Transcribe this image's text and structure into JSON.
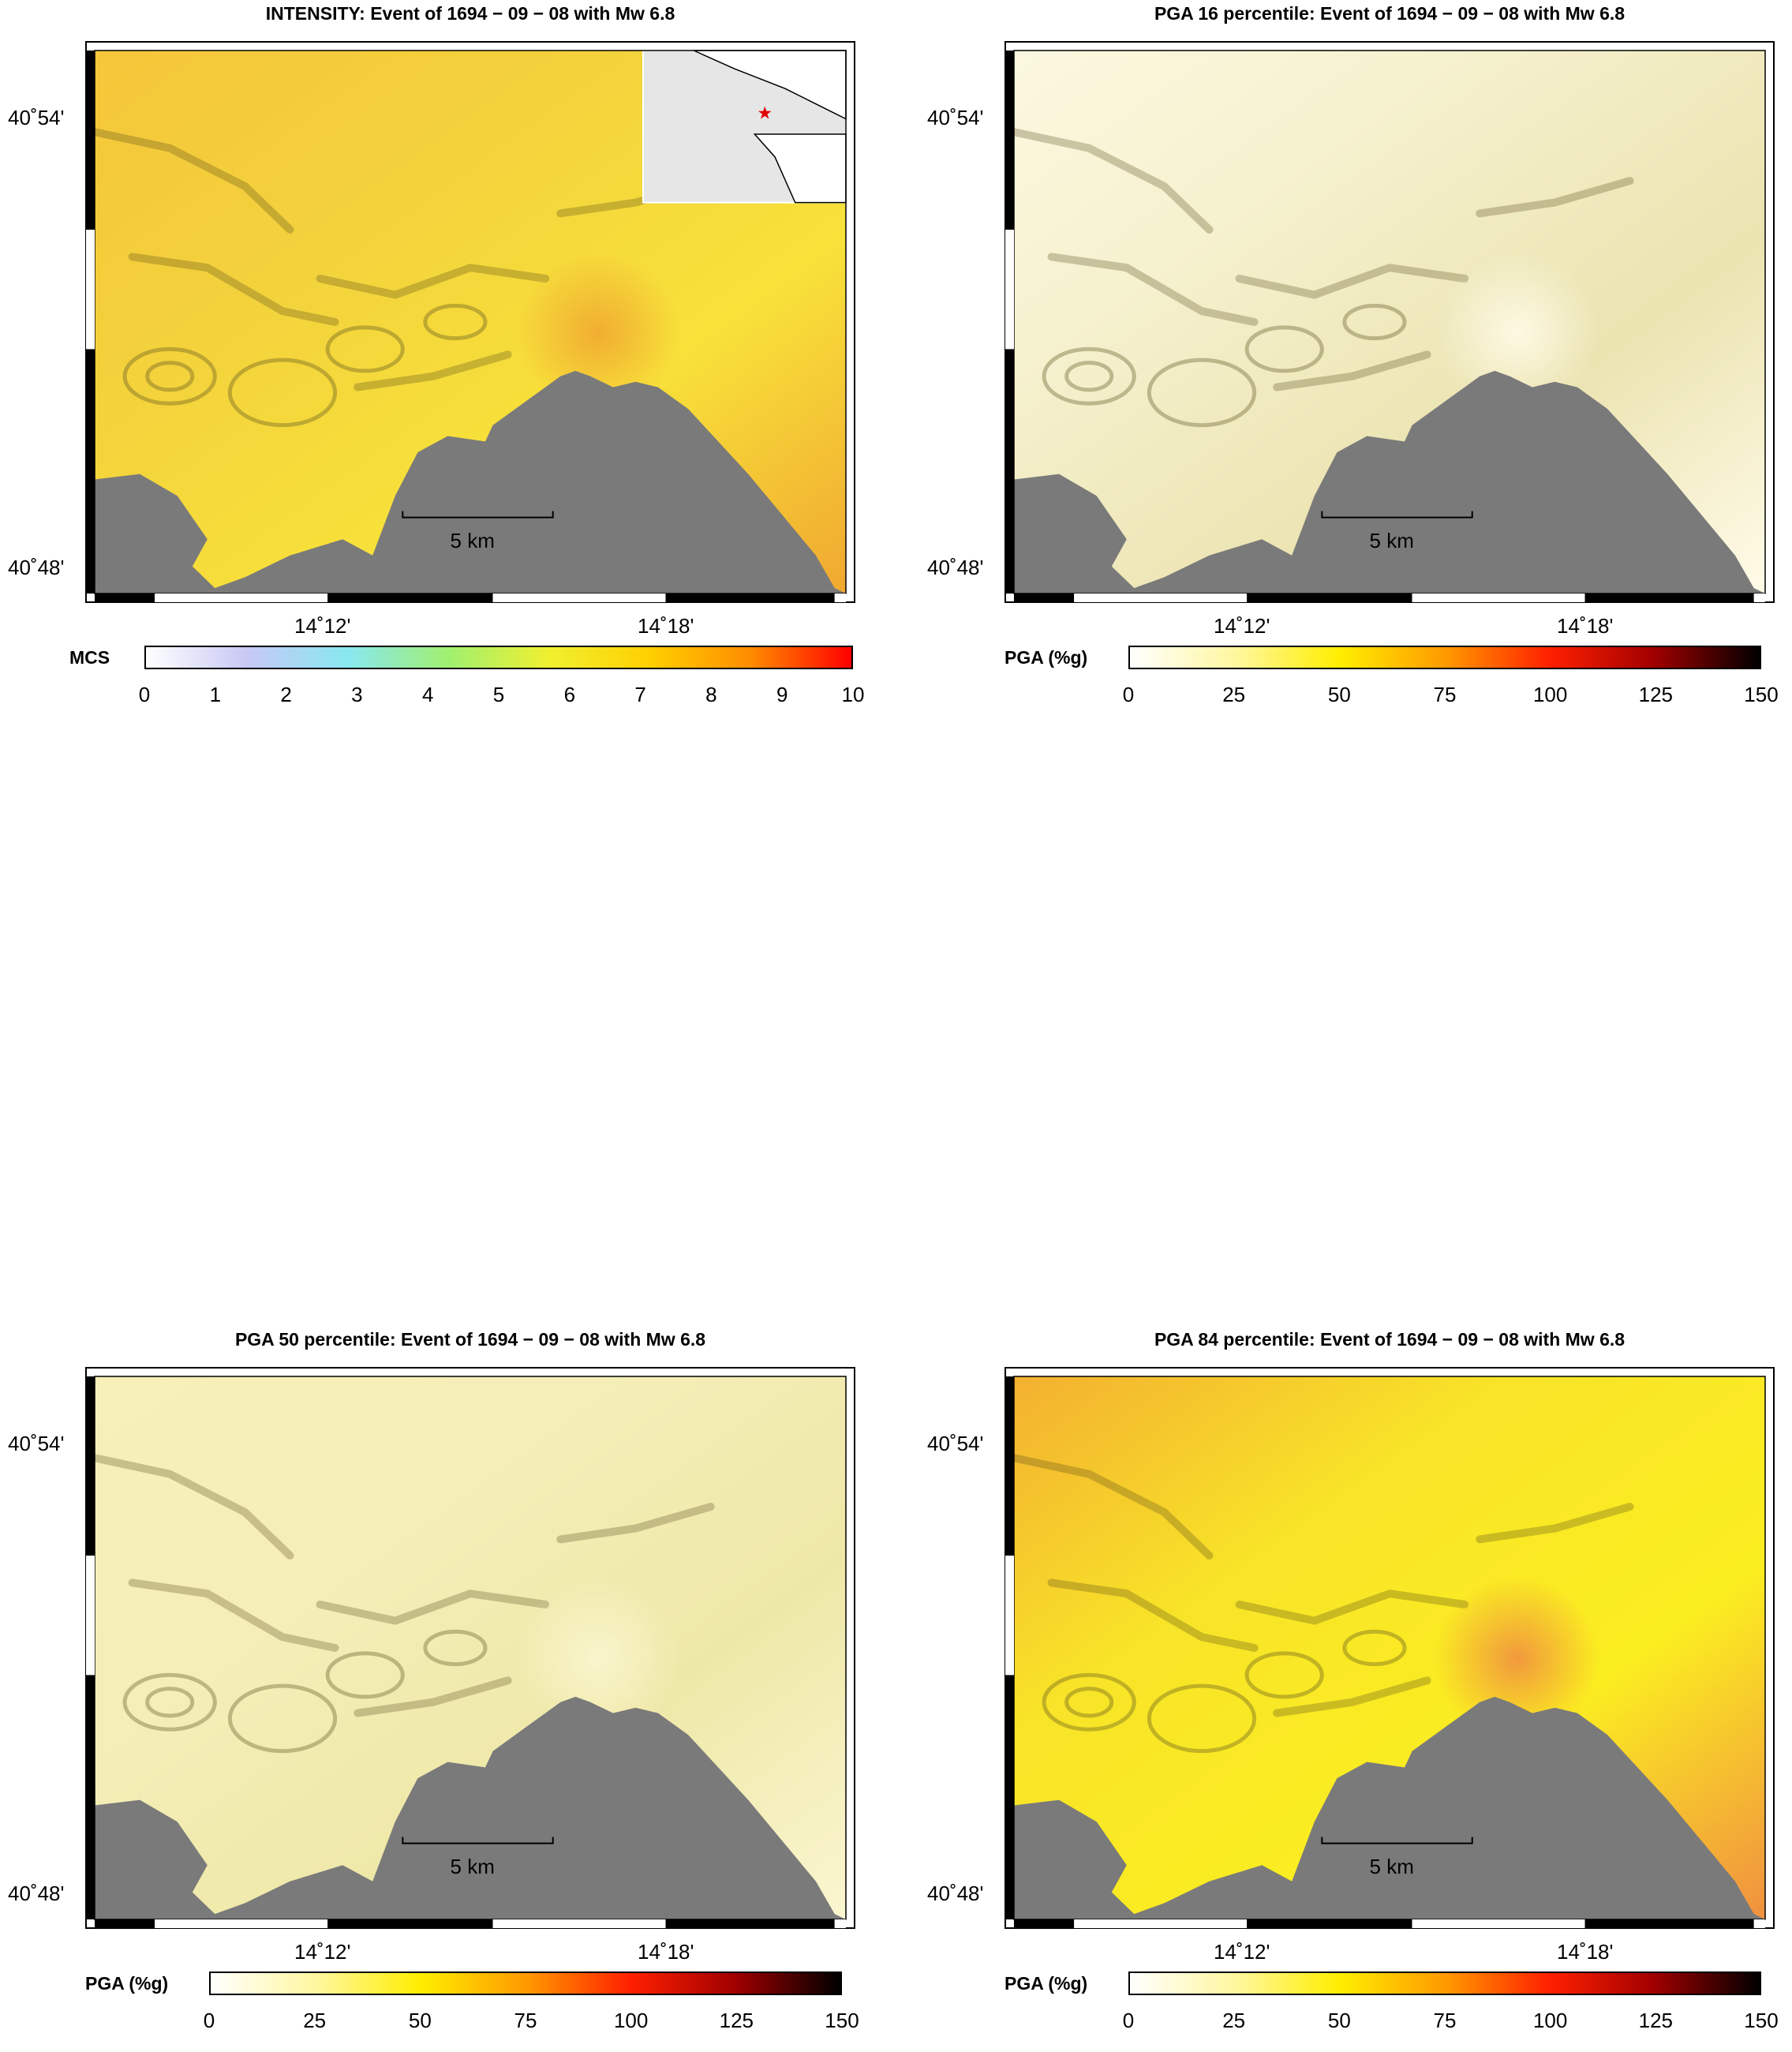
{
  "panels": [
    {
      "id": "intensity",
      "title": "INTENSITY: Event of 1694 − 09 − 08 with Mw 6.8",
      "lat_labels": [
        "40˚54'",
        "40˚48'"
      ],
      "lon_labels": [
        "14˚12'",
        "14˚18'"
      ],
      "scale_label": "5 km",
      "colorbar": {
        "label": "MCS",
        "ticks": [
          "0",
          "1",
          "2",
          "3",
          "4",
          "5",
          "6",
          "7",
          "8",
          "9",
          "10"
        ],
        "colors": [
          "#ffffff",
          "#c8c8f5",
          "#88e8f0",
          "#a0f070",
          "#f0f030",
          "#ffd000",
          "#ff8c00",
          "#ff0000"
        ]
      },
      "land_colors": [
        "#f5c63a",
        "#f3d23c",
        "#f8e23a",
        "#f0a830"
      ],
      "has_inset": true
    },
    {
      "id": "pga16",
      "title": "PGA 16 percentile: Event of 1694 − 09 − 08 with Mw 6.8",
      "lat_labels": [
        "40˚54'",
        "40˚48'"
      ],
      "lon_labels": [
        "14˚12'",
        "14˚18'"
      ],
      "scale_label": "5 km",
      "colorbar": {
        "label": "PGA (%g)",
        "ticks": [
          "0",
          "25",
          "50",
          "75",
          "100",
          "125",
          "150"
        ],
        "colors": [
          "#ffffff",
          "#fff7a0",
          "#ffee00",
          "#ff9a00",
          "#ff2000",
          "#a00000",
          "#000000"
        ]
      },
      "land_colors": [
        "#fbf8e0",
        "#f5f0cc",
        "#ebe3b0",
        "#fffbe8"
      ],
      "has_inset": false
    },
    {
      "id": "pga50",
      "title": "PGA 50 percentile: Event of 1694 − 09 − 08 with Mw 6.8",
      "lat_labels": [
        "40˚54'",
        "40˚48'"
      ],
      "lon_labels": [
        "14˚12'",
        "14˚18'"
      ],
      "scale_label": "5 km",
      "colorbar": {
        "label": "PGA (%g)",
        "ticks": [
          "0",
          "25",
          "50",
          "75",
          "100",
          "125",
          "150"
        ],
        "colors": [
          "#ffffff",
          "#fff7a0",
          "#ffee00",
          "#ff9a00",
          "#ff2000",
          "#a00000",
          "#000000"
        ]
      },
      "land_colors": [
        "#f7f0b8",
        "#f5eeb8",
        "#eee8a8",
        "#fbf6d0"
      ],
      "has_inset": false
    },
    {
      "id": "pga84",
      "title": "PGA 84 percentile: Event of 1694 − 09 − 08 with Mw 6.8",
      "lat_labels": [
        "40˚54'",
        "40˚48'"
      ],
      "lon_labels": [
        "14˚12'",
        "14˚18'"
      ],
      "scale_label": "5 km",
      "colorbar": {
        "label": "PGA (%g)",
        "ticks": [
          "0",
          "25",
          "50",
          "75",
          "100",
          "125",
          "150"
        ],
        "colors": [
          "#ffffff",
          "#fff7a0",
          "#ffee00",
          "#ff9a00",
          "#ff2000",
          "#a00000",
          "#000000"
        ]
      },
      "land_colors": [
        "#f3b030",
        "#f8e428",
        "#fbee20",
        "#f09040"
      ],
      "has_inset": false
    }
  ],
  "sea_color": "#7a7a7a"
}
